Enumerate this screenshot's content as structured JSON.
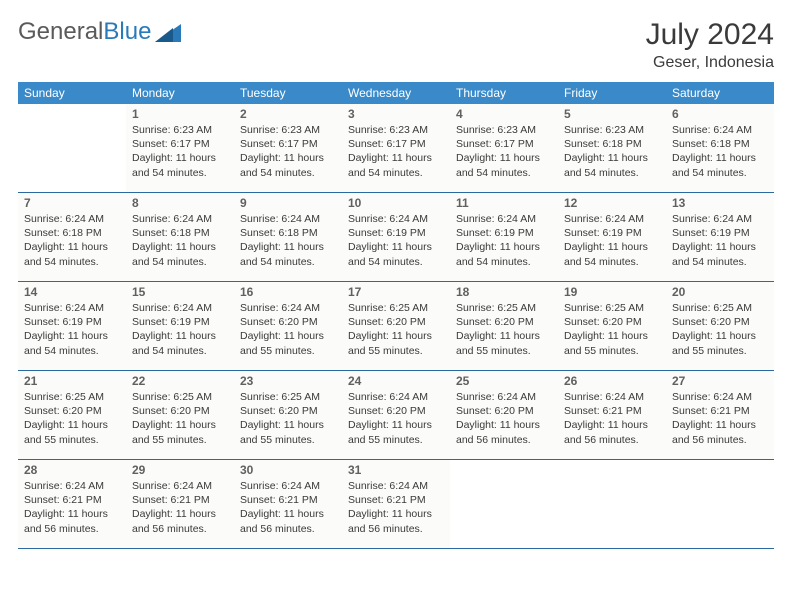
{
  "colors": {
    "header_bar": "#3a8ac9",
    "week_border": "#2a6aa0",
    "day_bg": "#fbfbf9",
    "text": "#3a3a3a",
    "daynum": "#606060",
    "logo_gray": "#5a5a5a",
    "logo_blue": "#2a7ab9"
  },
  "logo": {
    "part1": "General",
    "part2": "Blue"
  },
  "title": "July 2024",
  "location": "Geser, Indonesia",
  "weekdays": [
    "Sunday",
    "Monday",
    "Tuesday",
    "Wednesday",
    "Thursday",
    "Friday",
    "Saturday"
  ],
  "labels": {
    "sunrise": "Sunrise:",
    "sunset": "Sunset:",
    "daylight": "Daylight:"
  },
  "weeks": [
    [
      {
        "n": "",
        "empty": true
      },
      {
        "n": "1",
        "sunrise": "6:23 AM",
        "sunset": "6:17 PM",
        "daylight": "11 hours and 54 minutes."
      },
      {
        "n": "2",
        "sunrise": "6:23 AM",
        "sunset": "6:17 PM",
        "daylight": "11 hours and 54 minutes."
      },
      {
        "n": "3",
        "sunrise": "6:23 AM",
        "sunset": "6:17 PM",
        "daylight": "11 hours and 54 minutes."
      },
      {
        "n": "4",
        "sunrise": "6:23 AM",
        "sunset": "6:17 PM",
        "daylight": "11 hours and 54 minutes."
      },
      {
        "n": "5",
        "sunrise": "6:23 AM",
        "sunset": "6:18 PM",
        "daylight": "11 hours and 54 minutes."
      },
      {
        "n": "6",
        "sunrise": "6:24 AM",
        "sunset": "6:18 PM",
        "daylight": "11 hours and 54 minutes."
      }
    ],
    [
      {
        "n": "7",
        "sunrise": "6:24 AM",
        "sunset": "6:18 PM",
        "daylight": "11 hours and 54 minutes."
      },
      {
        "n": "8",
        "sunrise": "6:24 AM",
        "sunset": "6:18 PM",
        "daylight": "11 hours and 54 minutes."
      },
      {
        "n": "9",
        "sunrise": "6:24 AM",
        "sunset": "6:18 PM",
        "daylight": "11 hours and 54 minutes."
      },
      {
        "n": "10",
        "sunrise": "6:24 AM",
        "sunset": "6:19 PM",
        "daylight": "11 hours and 54 minutes."
      },
      {
        "n": "11",
        "sunrise": "6:24 AM",
        "sunset": "6:19 PM",
        "daylight": "11 hours and 54 minutes."
      },
      {
        "n": "12",
        "sunrise": "6:24 AM",
        "sunset": "6:19 PM",
        "daylight": "11 hours and 54 minutes."
      },
      {
        "n": "13",
        "sunrise": "6:24 AM",
        "sunset": "6:19 PM",
        "daylight": "11 hours and 54 minutes."
      }
    ],
    [
      {
        "n": "14",
        "sunrise": "6:24 AM",
        "sunset": "6:19 PM",
        "daylight": "11 hours and 54 minutes."
      },
      {
        "n": "15",
        "sunrise": "6:24 AM",
        "sunset": "6:19 PM",
        "daylight": "11 hours and 54 minutes."
      },
      {
        "n": "16",
        "sunrise": "6:24 AM",
        "sunset": "6:20 PM",
        "daylight": "11 hours and 55 minutes."
      },
      {
        "n": "17",
        "sunrise": "6:25 AM",
        "sunset": "6:20 PM",
        "daylight": "11 hours and 55 minutes."
      },
      {
        "n": "18",
        "sunrise": "6:25 AM",
        "sunset": "6:20 PM",
        "daylight": "11 hours and 55 minutes."
      },
      {
        "n": "19",
        "sunrise": "6:25 AM",
        "sunset": "6:20 PM",
        "daylight": "11 hours and 55 minutes."
      },
      {
        "n": "20",
        "sunrise": "6:25 AM",
        "sunset": "6:20 PM",
        "daylight": "11 hours and 55 minutes."
      }
    ],
    [
      {
        "n": "21",
        "sunrise": "6:25 AM",
        "sunset": "6:20 PM",
        "daylight": "11 hours and 55 minutes."
      },
      {
        "n": "22",
        "sunrise": "6:25 AM",
        "sunset": "6:20 PM",
        "daylight": "11 hours and 55 minutes."
      },
      {
        "n": "23",
        "sunrise": "6:25 AM",
        "sunset": "6:20 PM",
        "daylight": "11 hours and 55 minutes."
      },
      {
        "n": "24",
        "sunrise": "6:24 AM",
        "sunset": "6:20 PM",
        "daylight": "11 hours and 55 minutes."
      },
      {
        "n": "25",
        "sunrise": "6:24 AM",
        "sunset": "6:20 PM",
        "daylight": "11 hours and 56 minutes."
      },
      {
        "n": "26",
        "sunrise": "6:24 AM",
        "sunset": "6:21 PM",
        "daylight": "11 hours and 56 minutes."
      },
      {
        "n": "27",
        "sunrise": "6:24 AM",
        "sunset": "6:21 PM",
        "daylight": "11 hours and 56 minutes."
      }
    ],
    [
      {
        "n": "28",
        "sunrise": "6:24 AM",
        "sunset": "6:21 PM",
        "daylight": "11 hours and 56 minutes."
      },
      {
        "n": "29",
        "sunrise": "6:24 AM",
        "sunset": "6:21 PM",
        "daylight": "11 hours and 56 minutes."
      },
      {
        "n": "30",
        "sunrise": "6:24 AM",
        "sunset": "6:21 PM",
        "daylight": "11 hours and 56 minutes."
      },
      {
        "n": "31",
        "sunrise": "6:24 AM",
        "sunset": "6:21 PM",
        "daylight": "11 hours and 56 minutes."
      },
      {
        "n": "",
        "empty": true
      },
      {
        "n": "",
        "empty": true
      },
      {
        "n": "",
        "empty": true
      }
    ]
  ]
}
